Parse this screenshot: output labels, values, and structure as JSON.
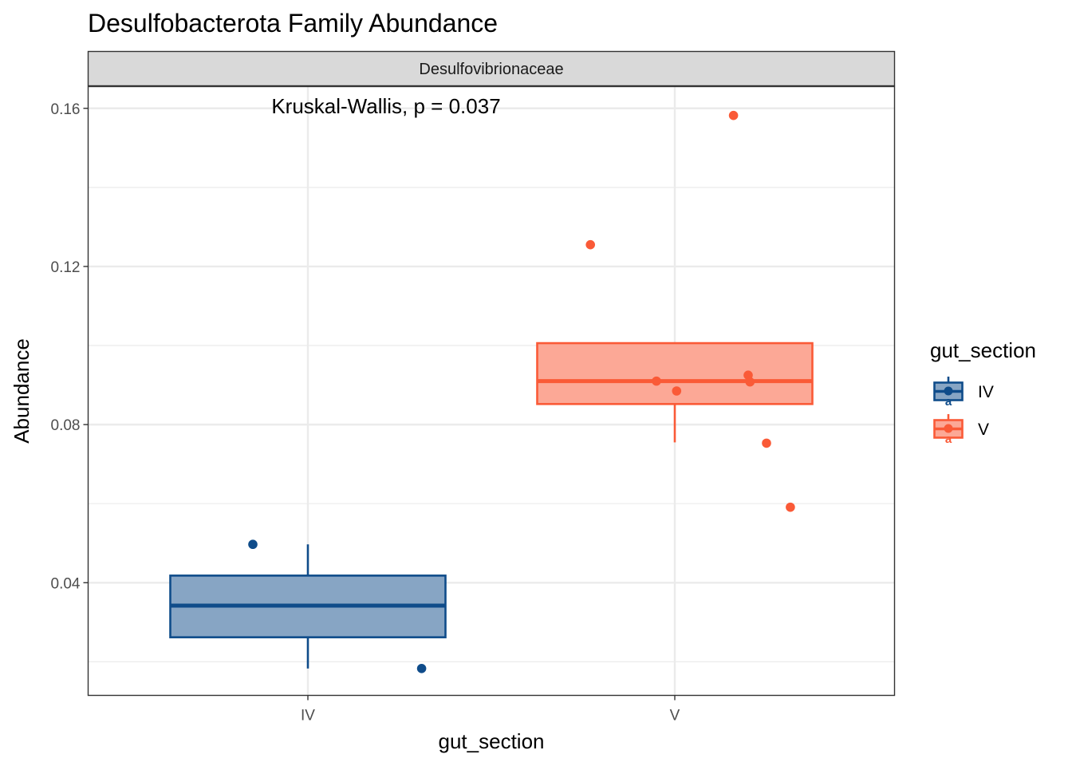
{
  "chart_data": {
    "type": "box",
    "title": "Desulfobacterota Family Abundance",
    "facet_label": "Desulfovibrionaceae",
    "xlabel": "gut_section",
    "ylabel": "Abundance",
    "categories": [
      "IV",
      "V"
    ],
    "ylim": [
      0.0115,
      0.1655
    ],
    "y_ticks": [
      0.04,
      0.08,
      0.12,
      0.16
    ],
    "y_tick_labels": [
      "0.04",
      "0.08",
      "0.12",
      "0.16"
    ],
    "annotation": "Kruskal-Wallis, p = 0.037",
    "grid": true,
    "legend": {
      "title": "gut_section",
      "position": "right",
      "entries": [
        "IV",
        "V"
      ],
      "key_letter": "a"
    },
    "colors": {
      "IV": "#0f4c8a",
      "V": "#fa5a37",
      "IV_fill": "#87a5c4",
      "V_fill": "#fca896"
    },
    "boxes": [
      {
        "category": "IV",
        "lower_whisker": 0.0183,
        "q1": 0.0262,
        "median": 0.0342,
        "q3": 0.0418,
        "upper_whisker": 0.0497
      },
      {
        "category": "V",
        "lower_whisker": 0.0755,
        "q1": 0.0852,
        "median": 0.091,
        "q3": 0.1006,
        "upper_whisker": 0.1006
      }
    ],
    "points": [
      {
        "category": "IV",
        "jitter": -0.15,
        "y": 0.0497
      },
      {
        "category": "IV",
        "jitter": 0.31,
        "y": 0.0183
      },
      {
        "category": "V",
        "jitter": -0.23,
        "y": 0.1255
      },
      {
        "category": "V",
        "jitter": 0.16,
        "y": 0.1582
      },
      {
        "category": "V",
        "jitter": -0.05,
        "y": 0.091
      },
      {
        "category": "V",
        "jitter": 0.005,
        "y": 0.0885
      },
      {
        "category": "V",
        "jitter": 0.2,
        "y": 0.0925
      },
      {
        "category": "V",
        "jitter": 0.205,
        "y": 0.0908
      },
      {
        "category": "V",
        "jitter": 0.25,
        "y": 0.0753
      },
      {
        "category": "V",
        "jitter": 0.315,
        "y": 0.0591
      }
    ]
  }
}
